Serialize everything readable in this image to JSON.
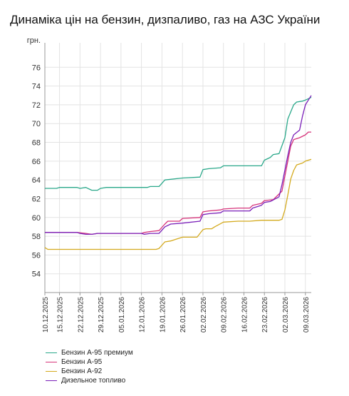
{
  "chart_data": {
    "type": "line",
    "title": "Динаміка цін на бензин, дизпаливо, газ на АЗС України",
    "ylabel": "грн.",
    "xlabel": "",
    "ylim": [
      52,
      78
    ],
    "yticks": [
      54,
      56,
      58,
      60,
      62,
      64,
      66,
      68,
      70,
      72,
      74,
      76
    ],
    "x_start": "2025-12-10",
    "x_end": "2026-03-11",
    "xtick_labels": [
      "10.12.2025",
      "15.12.2025",
      "22.12.2025",
      "29.12.2025",
      "05.01.2026",
      "12.01.2026",
      "19.01.2026",
      "26.01.2026",
      "02.02.2026",
      "09.02.2026",
      "16.02.2026",
      "23.02.2026",
      "02.03.2026",
      "09.03.2026"
    ],
    "grid": true,
    "legend_position": "bottom",
    "series": [
      {
        "name": "Бензин А-95 премиум",
        "color": "#2aa88a",
        "points": [
          [
            "2025-12-10",
            63.1
          ],
          [
            "2025-12-14",
            63.1
          ],
          [
            "2025-12-15",
            63.2
          ],
          [
            "2025-12-21",
            63.2
          ],
          [
            "2025-12-22",
            63.1
          ],
          [
            "2025-12-24",
            63.2
          ],
          [
            "2025-12-26",
            62.9
          ],
          [
            "2025-12-28",
            62.9
          ],
          [
            "2025-12-29",
            63.1
          ],
          [
            "2025-12-31",
            63.2
          ],
          [
            "2026-01-14",
            63.2
          ],
          [
            "2026-01-15",
            63.3
          ],
          [
            "2026-01-18",
            63.3
          ],
          [
            "2026-01-20",
            64.0
          ],
          [
            "2026-01-26",
            64.2
          ],
          [
            "2026-02-01",
            64.3
          ],
          [
            "2026-02-02",
            65.1
          ],
          [
            "2026-02-04",
            65.2
          ],
          [
            "2026-02-08",
            65.3
          ],
          [
            "2026-02-09",
            65.5
          ],
          [
            "2026-02-22",
            65.5
          ],
          [
            "2026-02-23",
            66.1
          ],
          [
            "2026-02-25",
            66.4
          ],
          [
            "2026-02-26",
            66.7
          ],
          [
            "2026-02-28",
            66.8
          ],
          [
            "2026-03-02",
            68.5
          ],
          [
            "2026-03-03",
            70.5
          ],
          [
            "2026-03-05",
            72.0
          ],
          [
            "2026-03-06",
            72.3
          ],
          [
            "2026-03-08",
            72.4
          ],
          [
            "2026-03-09",
            72.5
          ],
          [
            "2026-03-11",
            72.8
          ]
        ]
      },
      {
        "name": "Бензин А-95",
        "color": "#d6337a",
        "points": [
          [
            "2025-12-10",
            58.4
          ],
          [
            "2025-12-21",
            58.4
          ],
          [
            "2025-12-24",
            58.3
          ],
          [
            "2025-12-26",
            58.2
          ],
          [
            "2025-12-28",
            58.3
          ],
          [
            "2026-01-12",
            58.3
          ],
          [
            "2026-01-13",
            58.4
          ],
          [
            "2026-01-15",
            58.5
          ],
          [
            "2026-01-18",
            58.6
          ],
          [
            "2026-01-20",
            59.3
          ],
          [
            "2026-01-21",
            59.6
          ],
          [
            "2026-01-25",
            59.6
          ],
          [
            "2026-01-26",
            59.9
          ],
          [
            "2026-02-01",
            60.0
          ],
          [
            "2026-02-02",
            60.6
          ],
          [
            "2026-02-04",
            60.7
          ],
          [
            "2026-02-08",
            60.8
          ],
          [
            "2026-02-09",
            60.9
          ],
          [
            "2026-02-14",
            61.0
          ],
          [
            "2026-02-18",
            61.0
          ],
          [
            "2026-02-19",
            61.3
          ],
          [
            "2026-02-22",
            61.5
          ],
          [
            "2026-02-23",
            61.8
          ],
          [
            "2026-02-26",
            61.9
          ],
          [
            "2026-03-01",
            62.8
          ],
          [
            "2026-03-03",
            66.0
          ],
          [
            "2026-03-04",
            67.6
          ],
          [
            "2026-03-05",
            68.3
          ],
          [
            "2026-03-07",
            68.5
          ],
          [
            "2026-03-09",
            68.8
          ],
          [
            "2026-03-10",
            69.1
          ],
          [
            "2026-03-11",
            69.1
          ]
        ]
      },
      {
        "name": "Бензин А-92",
        "color": "#d4aa1e",
        "points": [
          [
            "2025-12-10",
            56.8
          ],
          [
            "2025-12-11",
            56.6
          ],
          [
            "2026-01-17",
            56.6
          ],
          [
            "2026-01-18",
            56.7
          ],
          [
            "2026-01-20",
            57.4
          ],
          [
            "2026-01-22",
            57.5
          ],
          [
            "2026-01-24",
            57.7
          ],
          [
            "2026-01-26",
            57.9
          ],
          [
            "2026-01-31",
            57.9
          ],
          [
            "2026-02-02",
            58.7
          ],
          [
            "2026-02-03",
            58.8
          ],
          [
            "2026-02-05",
            58.8
          ],
          [
            "2026-02-06",
            59.0
          ],
          [
            "2026-02-09",
            59.5
          ],
          [
            "2026-02-14",
            59.6
          ],
          [
            "2026-02-18",
            59.6
          ],
          [
            "2026-02-22",
            59.7
          ],
          [
            "2026-02-28",
            59.7
          ],
          [
            "2026-03-01",
            59.8
          ],
          [
            "2026-03-02",
            60.8
          ],
          [
            "2026-03-03",
            62.4
          ],
          [
            "2026-03-04",
            64.1
          ],
          [
            "2026-03-05",
            65.0
          ],
          [
            "2026-03-06",
            65.6
          ],
          [
            "2026-03-08",
            65.8
          ],
          [
            "2026-03-09",
            66.0
          ],
          [
            "2026-03-11",
            66.2
          ]
        ]
      },
      {
        "name": "Дизельное топливо",
        "color": "#7a1fb8",
        "points": [
          [
            "2025-12-10",
            58.4
          ],
          [
            "2025-12-21",
            58.4
          ],
          [
            "2025-12-22",
            58.3
          ],
          [
            "2025-12-24",
            58.2
          ],
          [
            "2025-12-26",
            58.2
          ],
          [
            "2025-12-28",
            58.3
          ],
          [
            "2026-01-12",
            58.3
          ],
          [
            "2026-01-13",
            58.2
          ],
          [
            "2026-01-15",
            58.3
          ],
          [
            "2026-01-18",
            58.3
          ],
          [
            "2026-01-20",
            59.0
          ],
          [
            "2026-01-22",
            59.3
          ],
          [
            "2026-01-26",
            59.4
          ],
          [
            "2026-02-01",
            59.6
          ],
          [
            "2026-02-02",
            60.3
          ],
          [
            "2026-02-04",
            60.4
          ],
          [
            "2026-02-08",
            60.5
          ],
          [
            "2026-02-09",
            60.7
          ],
          [
            "2026-02-18",
            60.7
          ],
          [
            "2026-02-19",
            61.0
          ],
          [
            "2026-02-22",
            61.3
          ],
          [
            "2026-02-23",
            61.6
          ],
          [
            "2026-02-25",
            61.7
          ],
          [
            "2026-02-28",
            62.2
          ],
          [
            "2026-03-01",
            63.5
          ],
          [
            "2026-03-03",
            66.6
          ],
          [
            "2026-03-04",
            68.0
          ],
          [
            "2026-03-05",
            68.8
          ],
          [
            "2026-03-07",
            69.3
          ],
          [
            "2026-03-08",
            70.8
          ],
          [
            "2026-03-09",
            72.0
          ],
          [
            "2026-03-10",
            72.5
          ],
          [
            "2026-03-11",
            73.0
          ]
        ]
      }
    ]
  }
}
